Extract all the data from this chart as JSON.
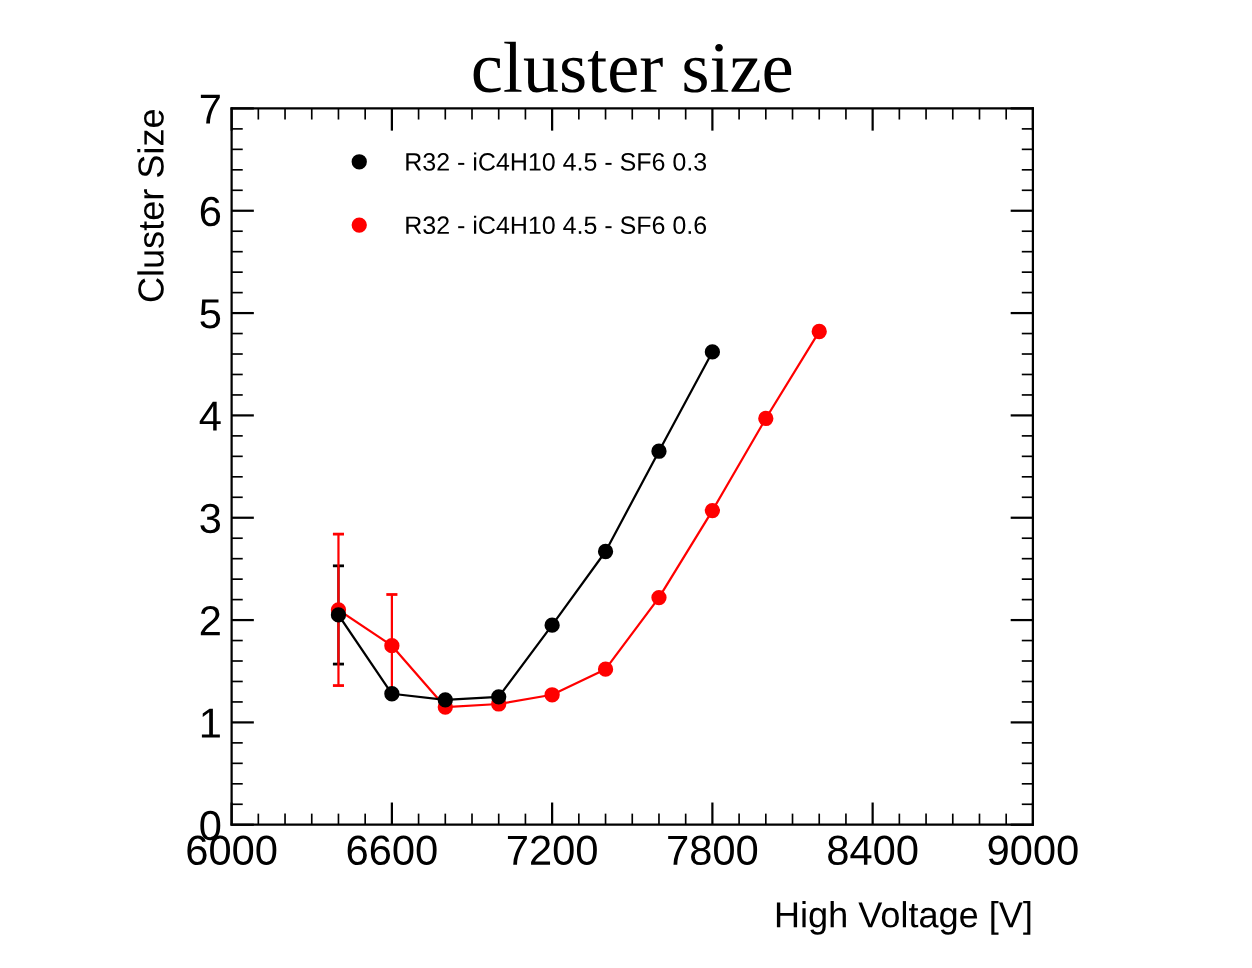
{
  "chart_data": {
    "type": "line",
    "title": "cluster size",
    "xlabel": "High Voltage [V]",
    "ylabel": "Cluster Size",
    "xlim": [
      6000,
      9000
    ],
    "xticks": [
      6000,
      6600,
      7200,
      7800,
      8400,
      9000
    ],
    "ylim": [
      0,
      7
    ],
    "yticks": [
      0,
      1,
      2,
      3,
      4,
      5,
      6,
      7
    ],
    "marker": "circle",
    "legend": "top left",
    "grid": false,
    "series": [
      {
        "name": "R32 - iC4H10 4.5 - SF6 0.3",
        "color": "#000000",
        "x": [
          6400,
          6600,
          6800,
          7000,
          7200,
          7400,
          7600,
          7800
        ],
        "values": [
          2.05,
          1.28,
          1.22,
          1.25,
          1.95,
          2.67,
          3.65,
          4.62
        ],
        "errors": [
          0.48,
          null,
          null,
          null,
          null,
          null,
          null,
          null
        ]
      },
      {
        "name": "R32 - iC4H10 4.5 - SF6 0.6",
        "color": "#ff0000",
        "x": [
          6400,
          6600,
          6800,
          7000,
          7200,
          7400,
          7600,
          7800,
          8000,
          8200
        ],
        "values": [
          2.1,
          1.75,
          1.15,
          1.18,
          1.27,
          1.52,
          2.22,
          3.07,
          3.97,
          4.82
        ],
        "errors": [
          0.74,
          0.5,
          null,
          null,
          null,
          null,
          null,
          null,
          null,
          null
        ]
      }
    ]
  }
}
